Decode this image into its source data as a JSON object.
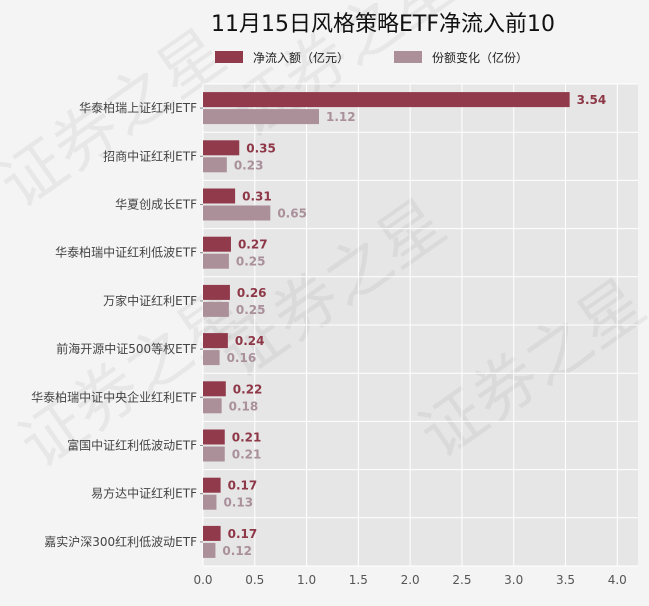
{
  "chart_data": {
    "type": "bar",
    "orientation": "horizontal",
    "title": "11月15日风格策略ETF净流入前10",
    "categories": [
      "华泰柏瑞上证红利ETF",
      "招商中证红利ETF",
      "华夏创成长ETF",
      "华泰柏瑞中证红利低波ETF",
      "万家中证红利ETF",
      "前海开源中证500等权ETF",
      "华泰柏瑞中证中央企业红利ETF",
      "富国中证红利低波动ETF",
      "易方达中证红利ETF",
      "嘉实沪深300红利低波动ETF"
    ],
    "series": [
      {
        "name": "净流入额（亿元）",
        "values": [
          3.54,
          0.35,
          0.31,
          0.27,
          0.26,
          0.24,
          0.22,
          0.21,
          0.17,
          0.17
        ],
        "color": "#913a4b"
      },
      {
        "name": "份额变化（亿份）",
        "values": [
          1.12,
          0.23,
          0.65,
          0.25,
          0.25,
          0.16,
          0.18,
          0.21,
          0.13,
          0.12
        ],
        "color": "#ab8f99"
      }
    ],
    "value_labels": [
      [
        "3.54",
        "0.35",
        "0.31",
        "0.27",
        "0.26",
        "0.24",
        "0.22",
        "0.21",
        "0.17",
        "0.17"
      ],
      [
        "1.12",
        "0.23",
        "0.65",
        "0.25",
        "0.25",
        "0.16",
        "0.18",
        "0.21",
        "0.13",
        "0.12"
      ]
    ],
    "xlim": [
      0,
      4.2
    ],
    "xticks": [
      "0.0",
      "0.5",
      "1.0",
      "1.5",
      "2.0",
      "2.5",
      "3.0",
      "3.5",
      "4.0"
    ],
    "xlabel": "",
    "ylabel": "",
    "grid": true,
    "legend_position": "top",
    "watermark": "证券之星",
    "plot_background": "#e6e6e6"
  }
}
